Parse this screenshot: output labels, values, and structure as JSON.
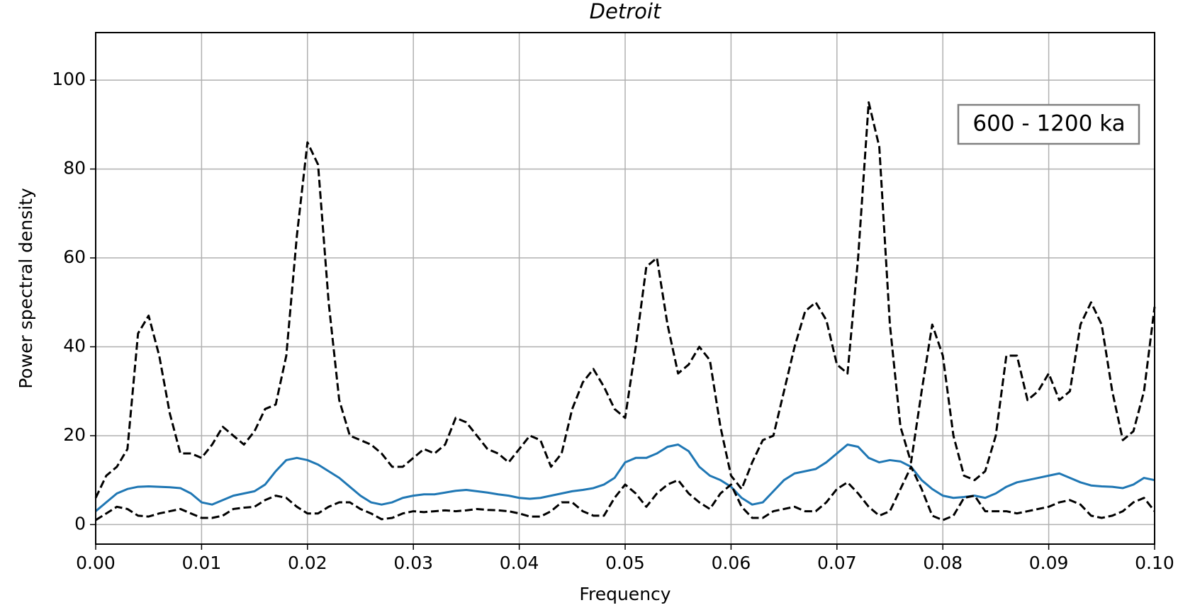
{
  "chart_data": {
    "type": "line",
    "title": "Detroit",
    "xlabel": "Frequency",
    "ylabel": "Power spectral density",
    "annotation": "600 - 1200 ka",
    "x": [
      0.0,
      0.001,
      0.002,
      0.003,
      0.004,
      0.005,
      0.006,
      0.007,
      0.008,
      0.009,
      0.01,
      0.011,
      0.012,
      0.013,
      0.014,
      0.015,
      0.016,
      0.017,
      0.018,
      0.019,
      0.02,
      0.021,
      0.022,
      0.023,
      0.024,
      0.025,
      0.026,
      0.027,
      0.028,
      0.029,
      0.03,
      0.031,
      0.032,
      0.033,
      0.034,
      0.035,
      0.036,
      0.037,
      0.038,
      0.039,
      0.04,
      0.041,
      0.042,
      0.043,
      0.044,
      0.045,
      0.046,
      0.047,
      0.048,
      0.049,
      0.05,
      0.051,
      0.052,
      0.053,
      0.054,
      0.055,
      0.056,
      0.057,
      0.058,
      0.059,
      0.06,
      0.061,
      0.062,
      0.063,
      0.064,
      0.065,
      0.066,
      0.067,
      0.068,
      0.069,
      0.07,
      0.071,
      0.072,
      0.073,
      0.074,
      0.075,
      0.076,
      0.077,
      0.078,
      0.079,
      0.08,
      0.081,
      0.082,
      0.083,
      0.084,
      0.085,
      0.086,
      0.087,
      0.088,
      0.089,
      0.09,
      0.091,
      0.092,
      0.093,
      0.094,
      0.095,
      0.096,
      0.097,
      0.098,
      0.099,
      0.1
    ],
    "series": [
      {
        "color": "#000000",
        "dash": true,
        "values": [
          6,
          11,
          13,
          17,
          43,
          47,
          38,
          25,
          16,
          16,
          15,
          18,
          22,
          20,
          18,
          21,
          26,
          27,
          38,
          65,
          86,
          81,
          50,
          28,
          20,
          19,
          18,
          16,
          13,
          13,
          15,
          17,
          16,
          18,
          24,
          23,
          20,
          17,
          16,
          14,
          17,
          20,
          19,
          13,
          16,
          26,
          32,
          35,
          31,
          26,
          24,
          40,
          58,
          60,
          45,
          34,
          36,
          40,
          37,
          22,
          11,
          8,
          14,
          19,
          20,
          30,
          40,
          48,
          50,
          46,
          36,
          34,
          60,
          95,
          85,
          45,
          22,
          14,
          30,
          45,
          38,
          20,
          11,
          10,
          12,
          20,
          38,
          38,
          28,
          30,
          34,
          28,
          30,
          45,
          50,
          45,
          30,
          19,
          21,
          30,
          49
        ]
      },
      {
        "color": "#1f77b4",
        "dash": false,
        "values": [
          3,
          5,
          7,
          8,
          8.5,
          8.6,
          8.5,
          8.4,
          8.2,
          7,
          5,
          4.5,
          5.5,
          6.5,
          7,
          7.5,
          9,
          12,
          14.5,
          15,
          14.5,
          13.5,
          12,
          10.5,
          8.5,
          6.5,
          5,
          4.5,
          5,
          6,
          6.5,
          6.8,
          6.8,
          7.2,
          7.6,
          7.8,
          7.5,
          7.2,
          6.8,
          6.5,
          6,
          5.8,
          6,
          6.5,
          7,
          7.5,
          7.8,
          8.2,
          9,
          10.5,
          14,
          15,
          15,
          16,
          17.5,
          18,
          16.5,
          13,
          11,
          10,
          8.5,
          6,
          4.5,
          5,
          7.5,
          10,
          11.5,
          12,
          12.5,
          14,
          16,
          18,
          17.5,
          15,
          14,
          14.5,
          14.2,
          13,
          10,
          8,
          6.5,
          6,
          6.2,
          6.5,
          6,
          7,
          8.5,
          9.5,
          10,
          10.5,
          11,
          11.5,
          10.5,
          9.5,
          8.8,
          8.6,
          8.5,
          8.2,
          9,
          10.5,
          10
        ]
      },
      {
        "color": "#000000",
        "dash": true,
        "values": [
          1,
          2.5,
          4,
          3.5,
          2,
          1.8,
          2.5,
          3,
          3.5,
          2.5,
          1.5,
          1.5,
          2,
          3.5,
          3.8,
          4,
          5.5,
          6.5,
          6,
          4,
          2.5,
          2.5,
          4,
          5,
          5,
          3.5,
          2.5,
          1.2,
          1.5,
          2.5,
          3,
          2.8,
          3,
          3.2,
          3,
          3.2,
          3.5,
          3.3,
          3.2,
          3,
          2.5,
          1.8,
          1.8,
          3,
          5,
          5,
          3,
          2,
          2,
          6,
          9,
          7,
          4,
          7,
          9,
          10,
          7,
          5,
          3.5,
          7,
          9,
          4,
          1.5,
          1.5,
          3,
          3.5,
          4,
          3,
          3,
          5,
          8,
          9.5,
          7,
          4,
          2,
          3,
          8,
          13,
          8,
          2,
          1,
          2,
          6,
          6.5,
          3,
          3,
          3,
          2.5,
          3,
          3.5,
          4,
          5,
          5.5,
          4.5,
          2,
          1.5,
          2,
          3,
          5,
          6,
          3
        ]
      }
    ],
    "xlim": [
      0,
      0.1
    ],
    "ylim": [
      -4.4,
      110.7
    ],
    "xticks": [
      {
        "value": 0,
        "label": "0.00"
      },
      {
        "value": 0.01,
        "label": "0.01"
      },
      {
        "value": 0.02,
        "label": "0.02"
      },
      {
        "value": 0.03,
        "label": "0.03"
      },
      {
        "value": 0.04,
        "label": "0.04"
      },
      {
        "value": 0.05,
        "label": "0.05"
      },
      {
        "value": 0.06,
        "label": "0.06"
      },
      {
        "value": 0.07,
        "label": "0.07"
      },
      {
        "value": 0.08,
        "label": "0.08"
      },
      {
        "value": 0.09,
        "label": "0.09"
      },
      {
        "value": 0.1,
        "label": "0.10"
      }
    ],
    "yticks": [
      0,
      20,
      40,
      60,
      80,
      100
    ],
    "grid": true
  }
}
